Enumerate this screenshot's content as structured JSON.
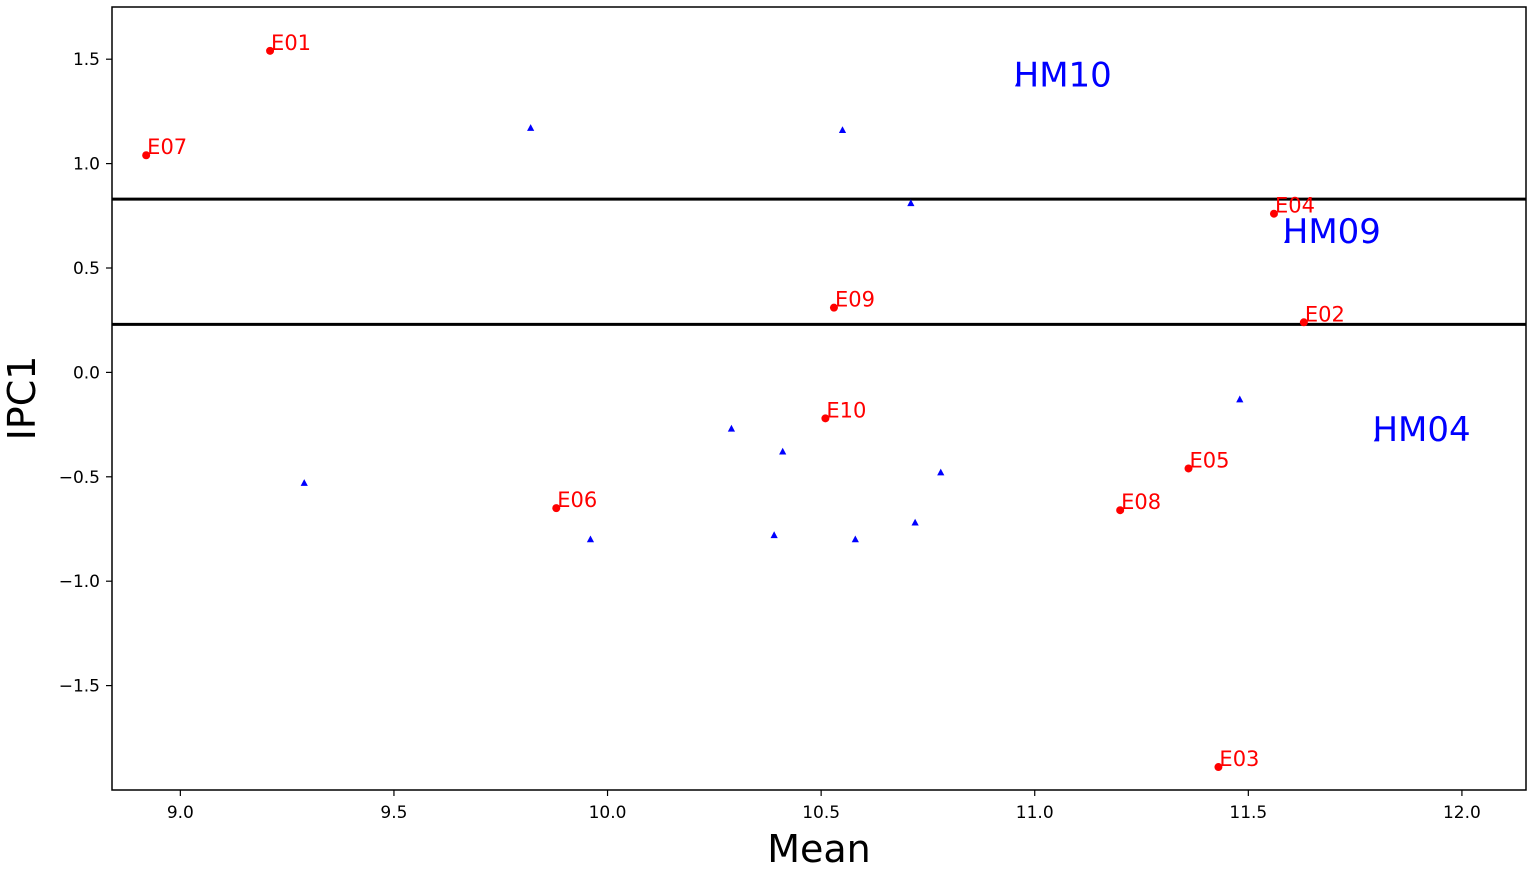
{
  "chart_data": {
    "type": "scatter",
    "title": "",
    "xlabel": "Mean",
    "ylabel": "IPC1",
    "xlim": [
      8.84,
      12.15
    ],
    "ylim": [
      -2.0,
      1.75
    ],
    "xticks": [
      9.0,
      9.5,
      10.0,
      10.5,
      11.0,
      11.5,
      12.0
    ],
    "xtick_labels": [
      "9.0",
      "9.5",
      "10.0",
      "10.5",
      "11.0",
      "11.5",
      "12.0"
    ],
    "yticks": [
      1.5,
      1.0,
      0.5,
      0.0,
      -0.5,
      -1.0,
      -1.5
    ],
    "ytick_labels": [
      "1.5",
      "1.0",
      "0.5",
      "0.0",
      "−0.5",
      "−1.0",
      "−1.5"
    ],
    "grid": false,
    "hlines": [
      0.83,
      0.23
    ],
    "colors": {
      "environments": "#ff0000",
      "genotypes": "#0000ff",
      "hlines": "#000000"
    },
    "environments": [
      {
        "label": "E01",
        "x": 9.21,
        "y": 1.54
      },
      {
        "label": "E07",
        "x": 8.92,
        "y": 1.04
      },
      {
        "label": "E04",
        "x": 11.56,
        "y": 0.76
      },
      {
        "label": "E09",
        "x": 10.53,
        "y": 0.31
      },
      {
        "label": "E02",
        "x": 11.63,
        "y": 0.24
      },
      {
        "label": "E10",
        "x": 10.51,
        "y": -0.22
      },
      {
        "label": "E05",
        "x": 11.36,
        "y": -0.46
      },
      {
        "label": "E06",
        "x": 9.88,
        "y": -0.65
      },
      {
        "label": "E08",
        "x": 11.2,
        "y": -0.66
      },
      {
        "label": "E03",
        "x": 11.43,
        "y": -1.89
      }
    ],
    "genotypes_labeled": [
      {
        "label": "HM10",
        "x": 10.96,
        "y": 1.38
      },
      {
        "label": "HM09",
        "x": 11.59,
        "y": 0.63
      },
      {
        "label": "HM04",
        "x": 11.8,
        "y": -0.32
      }
    ],
    "genotypes_unlabeled": [
      {
        "x": 9.82,
        "y": 1.17
      },
      {
        "x": 10.55,
        "y": 1.16
      },
      {
        "x": 10.71,
        "y": 0.81
      },
      {
        "x": 11.48,
        "y": -0.13
      },
      {
        "x": 10.29,
        "y": -0.27
      },
      {
        "x": 10.41,
        "y": -0.38
      },
      {
        "x": 10.78,
        "y": -0.48
      },
      {
        "x": 9.29,
        "y": -0.53
      },
      {
        "x": 10.72,
        "y": -0.72
      },
      {
        "x": 10.39,
        "y": -0.78
      },
      {
        "x": 9.96,
        "y": -0.8
      },
      {
        "x": 10.58,
        "y": -0.8
      }
    ]
  }
}
